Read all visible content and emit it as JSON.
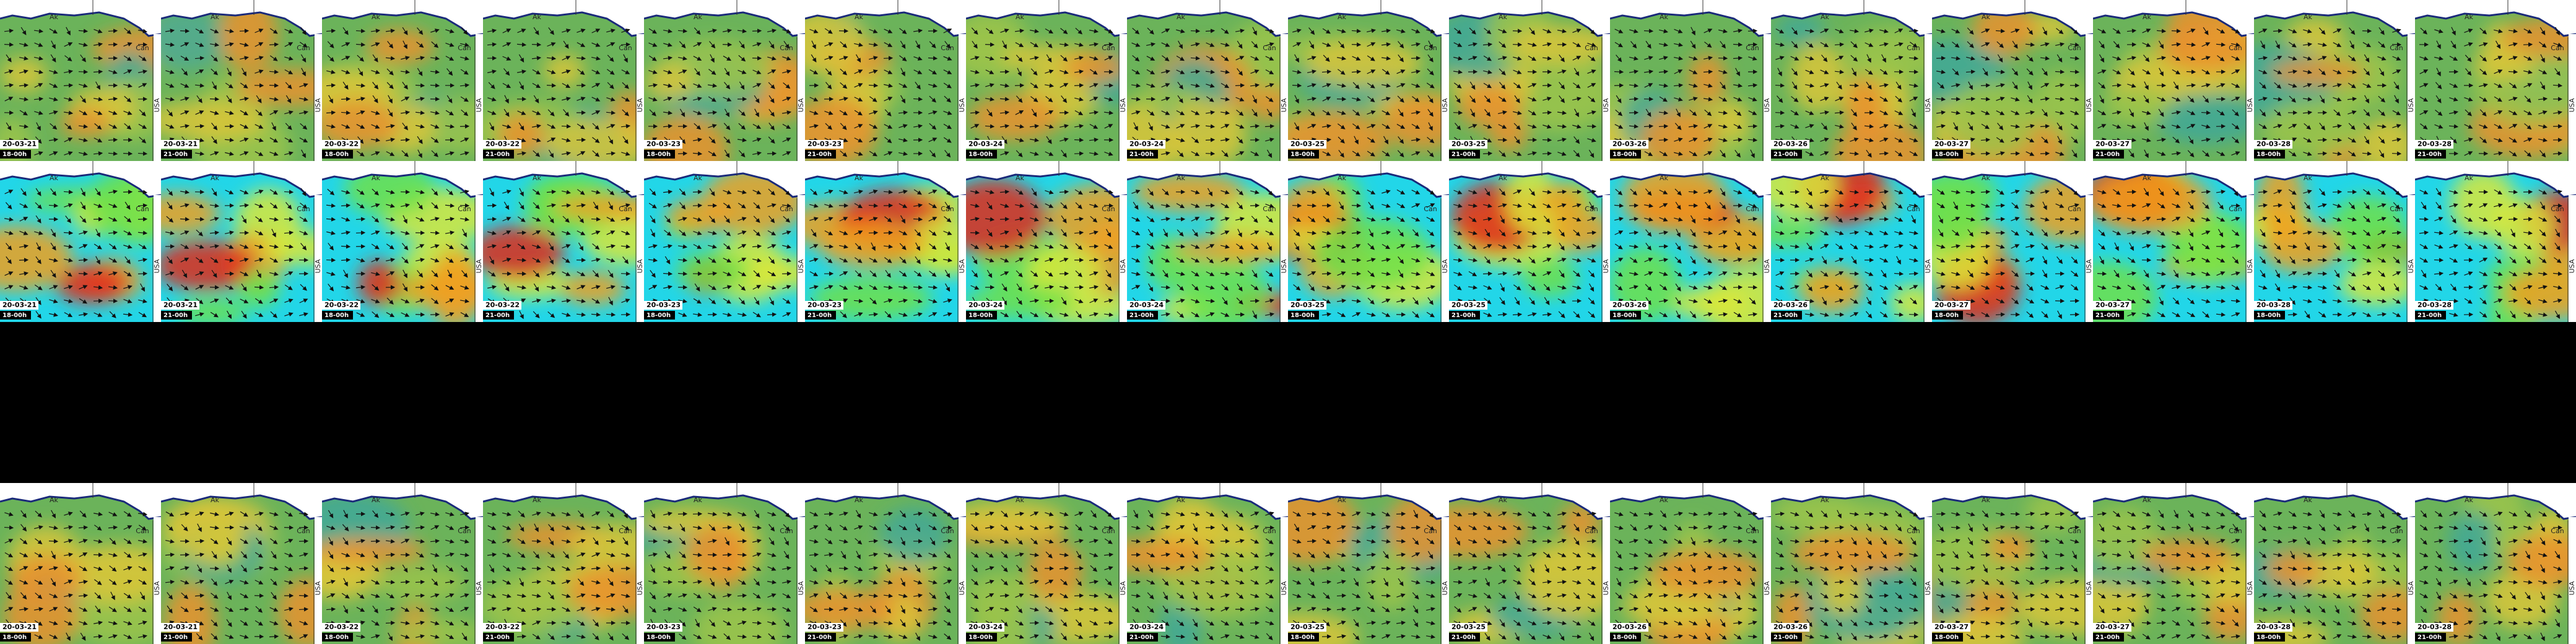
{
  "labels": {
    "alaska": "Ak",
    "canada": "Can",
    "usa": "USA"
  },
  "frames": [
    {
      "date": "20-03-21",
      "time": "18-00h"
    },
    {
      "date": "20-03-21",
      "time": "21-00h"
    },
    {
      "date": "20-03-22",
      "time": "18-00h"
    },
    {
      "date": "20-03-22",
      "time": "21-00h"
    },
    {
      "date": "20-03-23",
      "time": "18-00h"
    },
    {
      "date": "20-03-23",
      "time": "21-00h"
    },
    {
      "date": "20-03-24",
      "time": "18-00h"
    },
    {
      "date": "20-03-24",
      "time": "21-00h"
    },
    {
      "date": "20-03-25",
      "time": "18-00h"
    },
    {
      "date": "20-03-25",
      "time": "21-00h"
    },
    {
      "date": "20-03-26",
      "time": "18-00h"
    },
    {
      "date": "20-03-26",
      "time": "21-00h"
    },
    {
      "date": "20-03-27",
      "time": "18-00h"
    },
    {
      "date": "20-03-27",
      "time": "21-00h"
    },
    {
      "date": "20-03-28",
      "time": "18-00h"
    },
    {
      "date": "20-03-28",
      "time": "21-00h"
    }
  ]
}
